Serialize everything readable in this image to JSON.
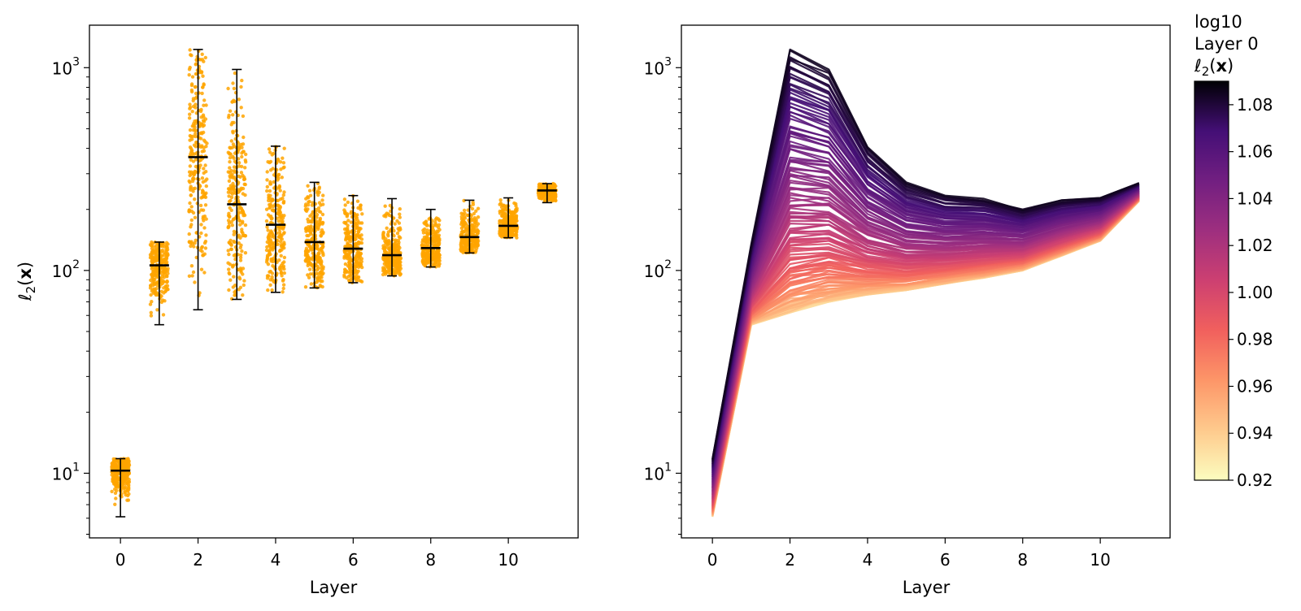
{
  "chart_data": [
    {
      "type": "scatter",
      "xlabel": "Layer",
      "ylabel": "ℓ2(x)",
      "yscale": "log",
      "xlim": [
        -0.8,
        11.8
      ],
      "ylim": [
        4.8,
        1620
      ],
      "xticks": [
        0,
        2,
        4,
        6,
        8,
        10
      ],
      "xtick_labels": [
        "0",
        "2",
        "4",
        "6",
        "8",
        "10"
      ],
      "yticks": [
        10,
        100,
        1000
      ],
      "ytick_labels": [
        "10",
        "10",
        "10"
      ],
      "ytick_exponents": [
        "1",
        "2",
        "3"
      ],
      "point_color": "#FFA500",
      "errorbar_color": "#000000",
      "layers": [
        0,
        1,
        2,
        3,
        4,
        5,
        6,
        7,
        8,
        9,
        10,
        11
      ],
      "mean": [
        10.3,
        106,
        362,
        212,
        168,
        138,
        128,
        119,
        129,
        146,
        166,
        248
      ],
      "min": [
        6.1,
        54,
        64,
        72,
        78,
        82,
        87,
        94,
        104,
        122,
        145,
        216
      ],
      "max": [
        11.8,
        138,
        1230,
        980,
        410,
        272,
        234,
        226,
        200,
        222,
        228,
        268
      ]
    },
    {
      "type": "line",
      "xlabel": "Layer",
      "yscale": "log",
      "xlim": [
        -0.8,
        11.8
      ],
      "ylim": [
        4.8,
        1620
      ],
      "xticks": [
        0,
        2,
        4,
        6,
        8,
        10
      ],
      "xtick_labels": [
        "0",
        "2",
        "4",
        "6",
        "8",
        "10"
      ],
      "yticks": [
        10,
        100,
        1000
      ],
      "ytick_labels": [
        "10",
        "10",
        "10"
      ],
      "ytick_exponents": [
        "1",
        "2",
        "3"
      ],
      "x": [
        0,
        1,
        2,
        3,
        4,
        5,
        6,
        7,
        8,
        9,
        10,
        11
      ],
      "envelope_low": [
        6.1,
        54,
        62,
        70,
        76,
        80,
        86,
        92,
        100,
        118,
        140,
        220
      ],
      "envelope_high": [
        11.8,
        135,
        1230,
        980,
        410,
        272,
        234,
        226,
        200,
        222,
        228,
        270
      ],
      "colormap": "magma_r",
      "colorbar": {
        "title_lines": [
          "log10",
          "Layer 0",
          "ℓ2(x)"
        ],
        "min": 0.92,
        "max": 1.09,
        "ticks": [
          1.08,
          1.06,
          1.04,
          1.02,
          1.0,
          0.98,
          0.96,
          0.94,
          0.92
        ],
        "tick_labels": [
          "1.08",
          "1.06",
          "1.04",
          "1.02",
          "1.00",
          "0.98",
          "0.96",
          "0.94",
          "0.92"
        ]
      }
    }
  ]
}
